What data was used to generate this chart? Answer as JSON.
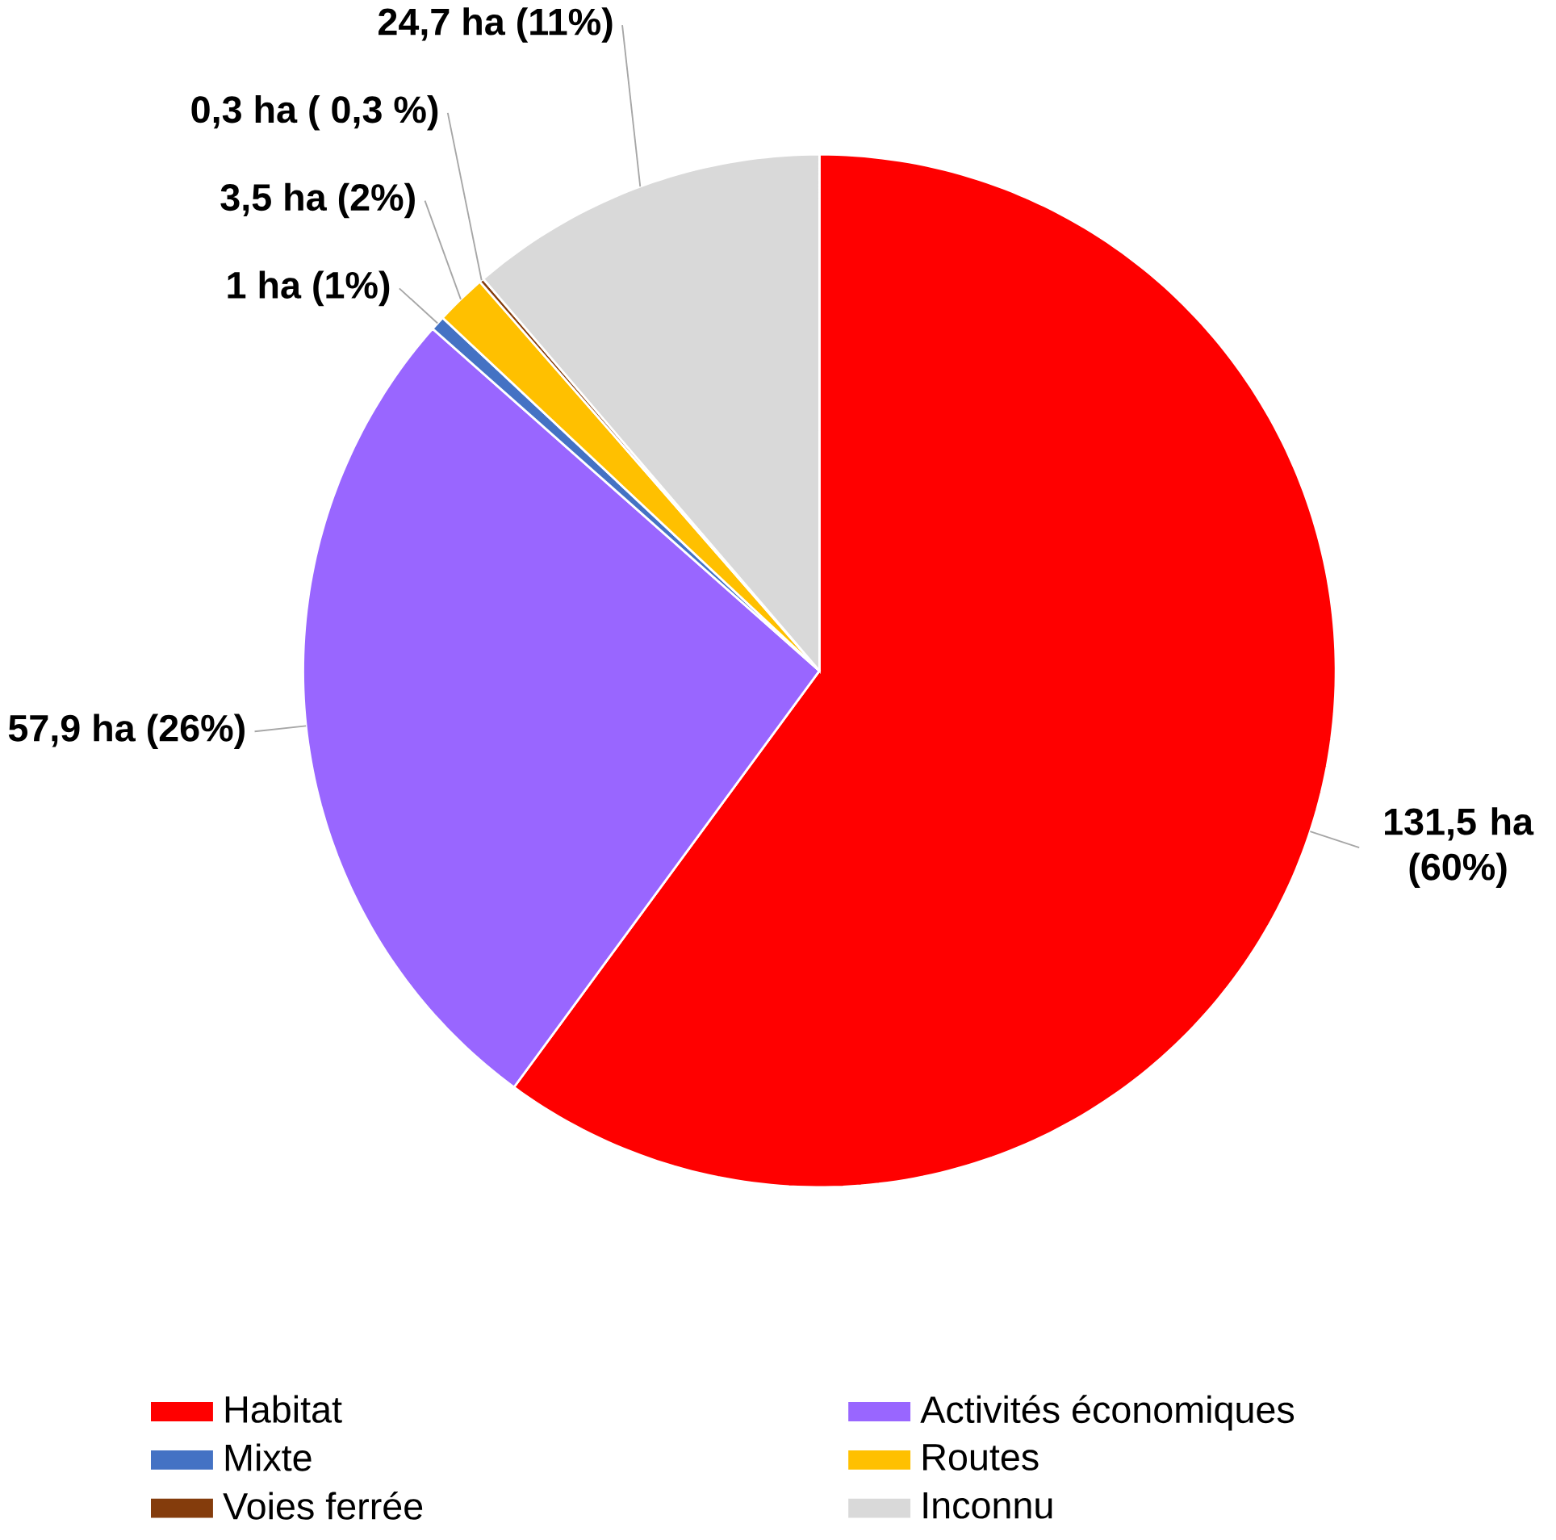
{
  "chart_data": {
    "type": "pie",
    "categories": [
      "Habitat",
      "Activités économiques",
      "Mixte",
      "Routes",
      "Voies ferrée",
      "Inconnu"
    ],
    "values": [
      131.5,
      57.9,
      1,
      3.5,
      0.3,
      24.7
    ],
    "colors": [
      "#ff0000",
      "#9966ff",
      "#4472c4",
      "#ffc000",
      "#843c0c",
      "#d9d9d9"
    ],
    "value_labels": [
      "131,5 ha (60%)",
      "57,9 ha (26%)",
      "1 ha (1%)",
      "3,5 ha (2%)",
      "0,3 ha ( 0,3 %)",
      "24,7 ha (11%)"
    ],
    "legend": "bottom"
  }
}
